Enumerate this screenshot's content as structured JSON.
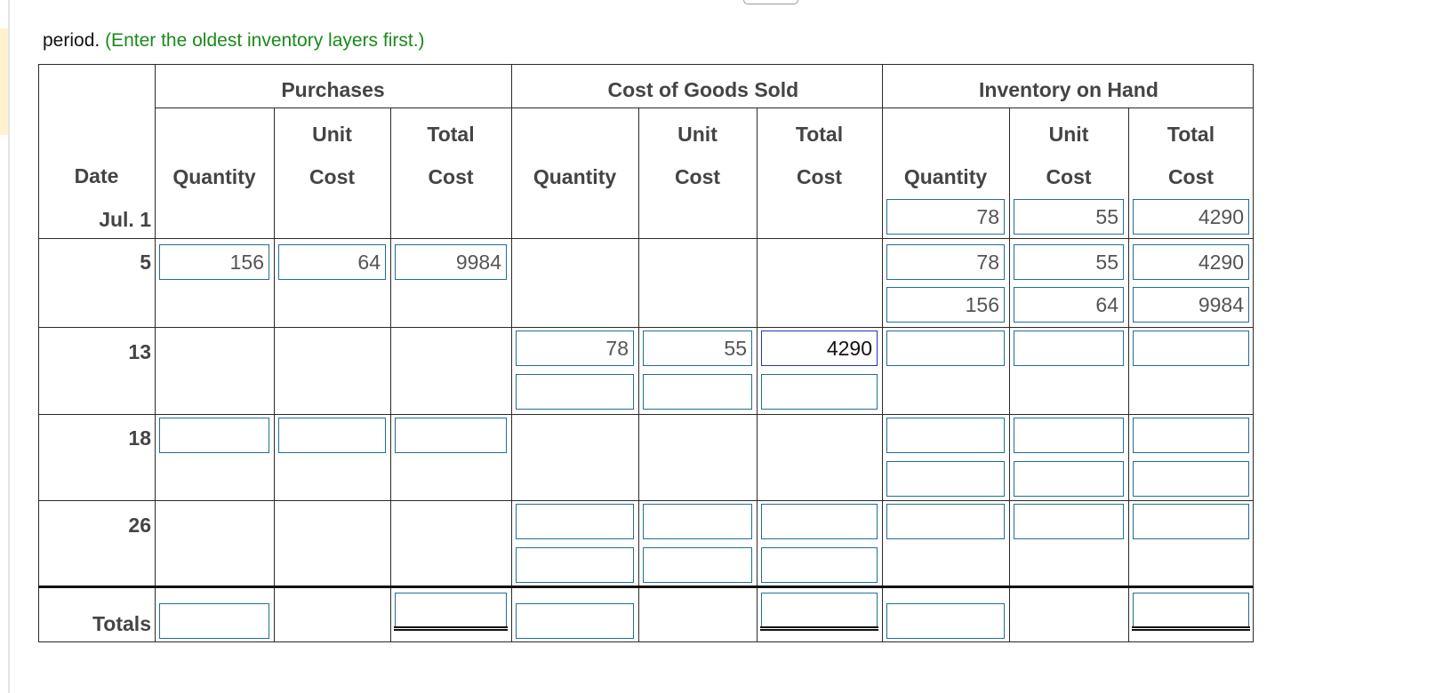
{
  "instruction": {
    "prefix": "period.",
    "hint": "(Enter the oldest inventory layers first.)"
  },
  "table": {
    "group_headers": {
      "purchases": "Purchases",
      "cogs": "Cost of Goods Sold",
      "inventory": "Inventory on Hand"
    },
    "column_headers": {
      "date": "Date",
      "quantity": "Quantity",
      "unit_top": "Unit",
      "unit_bottom": "Cost",
      "total_top": "Total",
      "total_bottom": "Cost"
    },
    "rows": {
      "jul1": {
        "date": "Jul. 1",
        "inventory": [
          {
            "quantity": "78",
            "unit_cost": "55",
            "total_cost": "4290"
          }
        ]
      },
      "d5": {
        "date": "5",
        "purchases": {
          "quantity": "156",
          "unit_cost": "64",
          "total_cost": "9984"
        },
        "inventory": [
          {
            "quantity": "78",
            "unit_cost": "55",
            "total_cost": "4290"
          },
          {
            "quantity": "156",
            "unit_cost": "64",
            "total_cost": "9984"
          }
        ]
      },
      "d13": {
        "date": "13",
        "cogs": [
          {
            "quantity": "78",
            "unit_cost": "55",
            "total_cost": "4290"
          },
          {
            "quantity": "",
            "unit_cost": "",
            "total_cost": ""
          }
        ],
        "inventory": [
          {
            "quantity": "",
            "unit_cost": "",
            "total_cost": ""
          }
        ]
      },
      "d18": {
        "date": "18",
        "purchases": {
          "quantity": "",
          "unit_cost": "",
          "total_cost": ""
        },
        "inventory": [
          {
            "quantity": "",
            "unit_cost": "",
            "total_cost": ""
          },
          {
            "quantity": "",
            "unit_cost": "",
            "total_cost": ""
          }
        ]
      },
      "d26": {
        "date": "26",
        "cogs": [
          {
            "quantity": "",
            "unit_cost": "",
            "total_cost": ""
          },
          {
            "quantity": "",
            "unit_cost": "",
            "total_cost": ""
          }
        ],
        "inventory": [
          {
            "quantity": "",
            "unit_cost": "",
            "total_cost": ""
          }
        ]
      },
      "totals": {
        "label": "Totals",
        "purchases_quantity": "",
        "purchases_total_cost": "",
        "cogs_quantity": "",
        "cogs_total_cost": "",
        "inventory_quantity": "",
        "inventory_total_cost": ""
      }
    }
  },
  "colors": {
    "hint_text": "#1a8a1a",
    "input_border": "#1f6f9a",
    "active_input_border": "#2233bb",
    "grid_line": "#2a2a2a",
    "left_marker": "#fdf1cf"
  }
}
